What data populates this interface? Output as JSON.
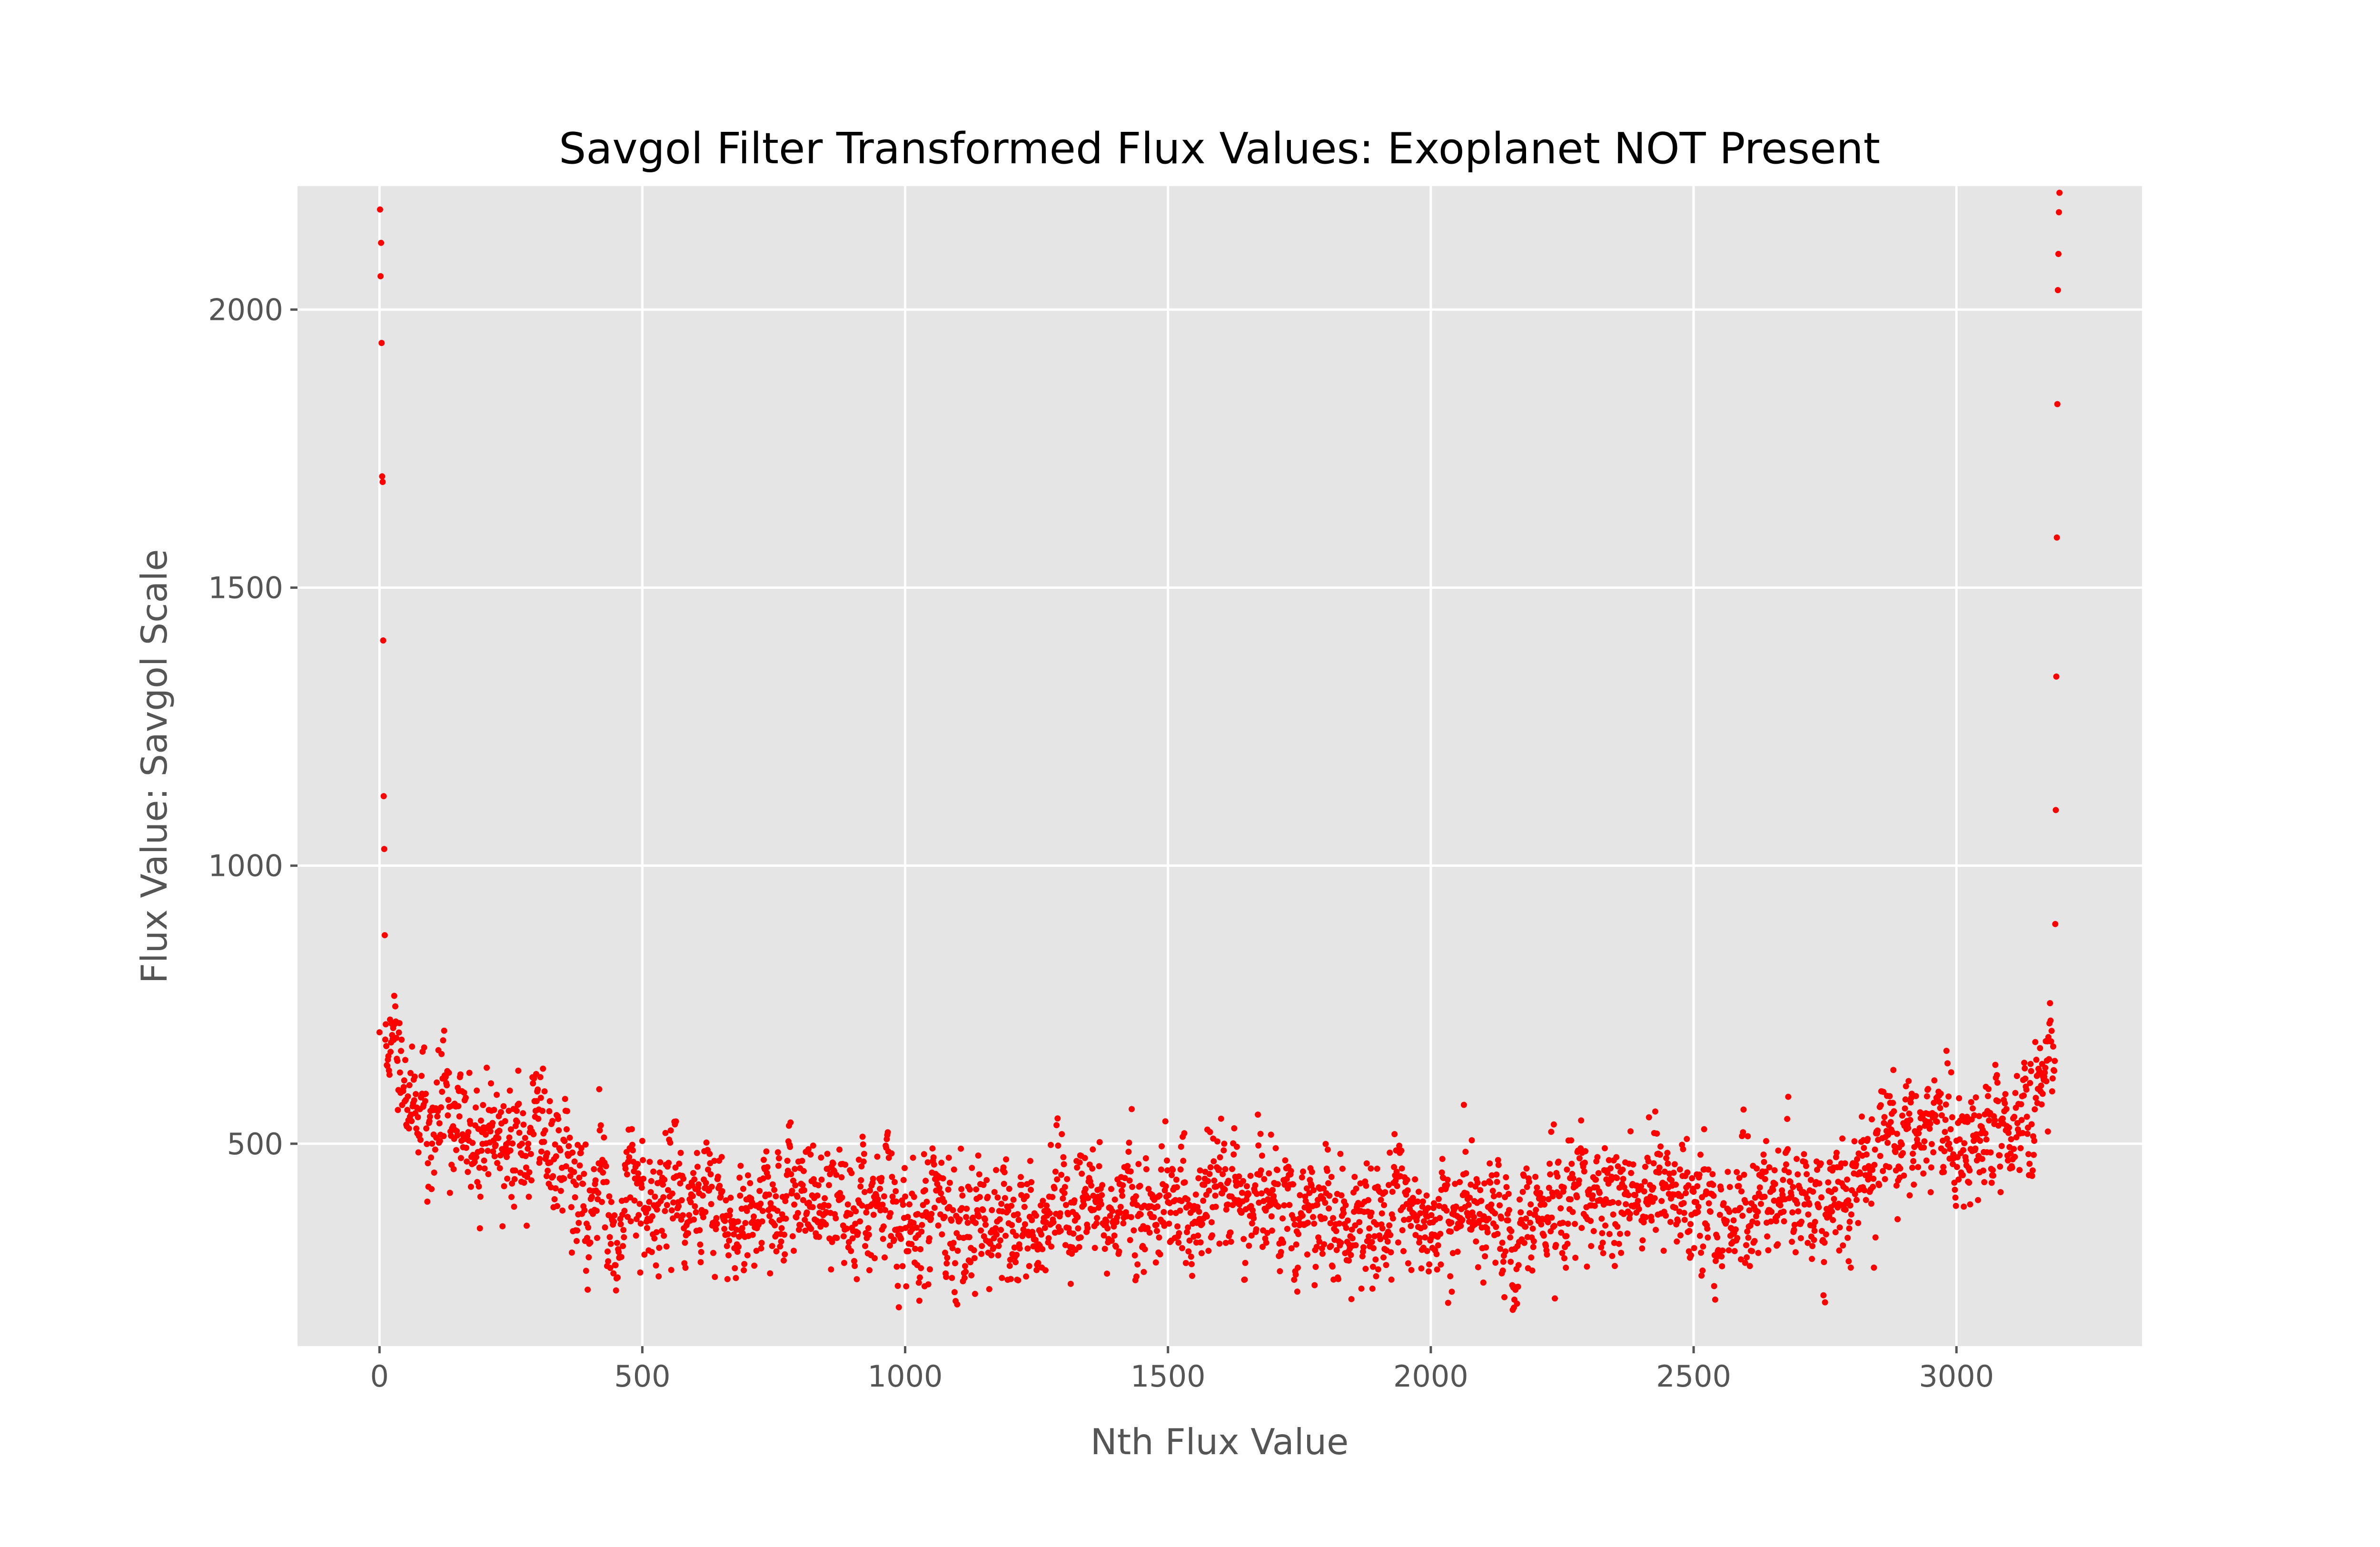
{
  "chart_data": {
    "type": "scatter",
    "title": "Savgol Filter Transformed Flux Values: Exoplanet NOT Present",
    "xlabel": "Nth Flux Value",
    "ylabel": "Flux Value: Savgol Scale",
    "xlim": [
      -156,
      3353
    ],
    "ylim": [
      136,
      2222
    ],
    "xticks": [
      0,
      500,
      1000,
      1500,
      2000,
      2500,
      3000
    ],
    "yticks": [
      500,
      1000,
      1500,
      2000
    ],
    "xtick_labels": [
      "0",
      "500",
      "1000",
      "1500",
      "2000",
      "2500",
      "3000"
    ],
    "ytick_labels": [
      "500",
      "1000",
      "1500",
      "2000"
    ],
    "grid": true,
    "style": "ggplot",
    "marker_color": "#ff0000",
    "n_points": 3197,
    "baseline": [
      [
        0,
        660
      ],
      [
        50,
        570
      ],
      [
        100,
        545
      ],
      [
        150,
        525
      ],
      [
        200,
        520
      ],
      [
        250,
        525
      ],
      [
        300,
        505
      ],
      [
        350,
        470
      ],
      [
        400,
        400
      ],
      [
        450,
        385
      ],
      [
        500,
        400
      ],
      [
        550,
        405
      ],
      [
        600,
        405
      ],
      [
        650,
        385
      ],
      [
        700,
        385
      ],
      [
        750,
        415
      ],
      [
        800,
        420
      ],
      [
        850,
        385
      ],
      [
        900,
        385
      ],
      [
        950,
        385
      ],
      [
        1000,
        360
      ],
      [
        1050,
        345
      ],
      [
        1100,
        375
      ],
      [
        1150,
        365
      ],
      [
        1200,
        355
      ],
      [
        1250,
        355
      ],
      [
        1300,
        370
      ],
      [
        1350,
        380
      ],
      [
        1400,
        375
      ],
      [
        1450,
        375
      ],
      [
        1500,
        410
      ],
      [
        1550,
        400
      ],
      [
        1600,
        390
      ],
      [
        1650,
        400
      ],
      [
        1700,
        390
      ],
      [
        1750,
        365
      ],
      [
        1800,
        370
      ],
      [
        1850,
        375
      ],
      [
        1900,
        375
      ],
      [
        1950,
        360
      ],
      [
        2000,
        355
      ],
      [
        2050,
        380
      ],
      [
        2100,
        375
      ],
      [
        2150,
        345
      ],
      [
        2200,
        375
      ],
      [
        2250,
        405
      ],
      [
        2300,
        400
      ],
      [
        2350,
        405
      ],
      [
        2400,
        420
      ],
      [
        2450,
        420
      ],
      [
        2500,
        375
      ],
      [
        2550,
        385
      ],
      [
        2600,
        395
      ],
      [
        2650,
        400
      ],
      [
        2700,
        405
      ],
      [
        2750,
        390
      ],
      [
        2800,
        400
      ],
      [
        2850,
        490
      ],
      [
        2900,
        530
      ],
      [
        2950,
        530
      ],
      [
        3000,
        505
      ],
      [
        3050,
        530
      ],
      [
        3100,
        540
      ],
      [
        3150,
        590
      ],
      [
        3196,
        650
      ]
    ],
    "noise_std": 75,
    "edge_spikes_left": [
      {
        "x": 1,
        "y": 2180
      },
      {
        "x": 3,
        "y": 2120
      },
      {
        "x": 2,
        "y": 2060
      },
      {
        "x": 4,
        "y": 1940
      },
      {
        "x": 5,
        "y": 1700
      },
      {
        "x": 6,
        "y": 1690
      },
      {
        "x": 7,
        "y": 1405
      },
      {
        "x": 8,
        "y": 1125
      },
      {
        "x": 9,
        "y": 1030
      },
      {
        "x": 10,
        "y": 875
      }
    ],
    "edge_spikes_right": [
      {
        "x": 3196,
        "y": 2210
      },
      {
        "x": 3195,
        "y": 2175
      },
      {
        "x": 3194,
        "y": 2100
      },
      {
        "x": 3193,
        "y": 2035
      },
      {
        "x": 3192,
        "y": 1830
      },
      {
        "x": 3191,
        "y": 1590
      },
      {
        "x": 3190,
        "y": 1340
      },
      {
        "x": 3189,
        "y": 1100
      },
      {
        "x": 3188,
        "y": 895
      }
    ]
  }
}
